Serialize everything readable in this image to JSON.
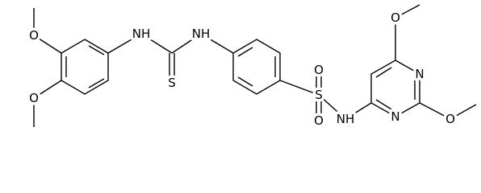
{
  "atoms": [
    {
      "label": "O"
    },
    {
      "label": "O"
    },
    {
      "label": "NH"
    },
    {
      "label": "S"
    },
    {
      "label": "NH"
    },
    {
      "label": "S"
    },
    {
      "label": "O"
    },
    {
      "label": "O"
    },
    {
      "label": "NH"
    },
    {
      "label": "O"
    },
    {
      "label": "N"
    },
    {
      "label": "N"
    },
    {
      "label": "O"
    }
  ]
}
